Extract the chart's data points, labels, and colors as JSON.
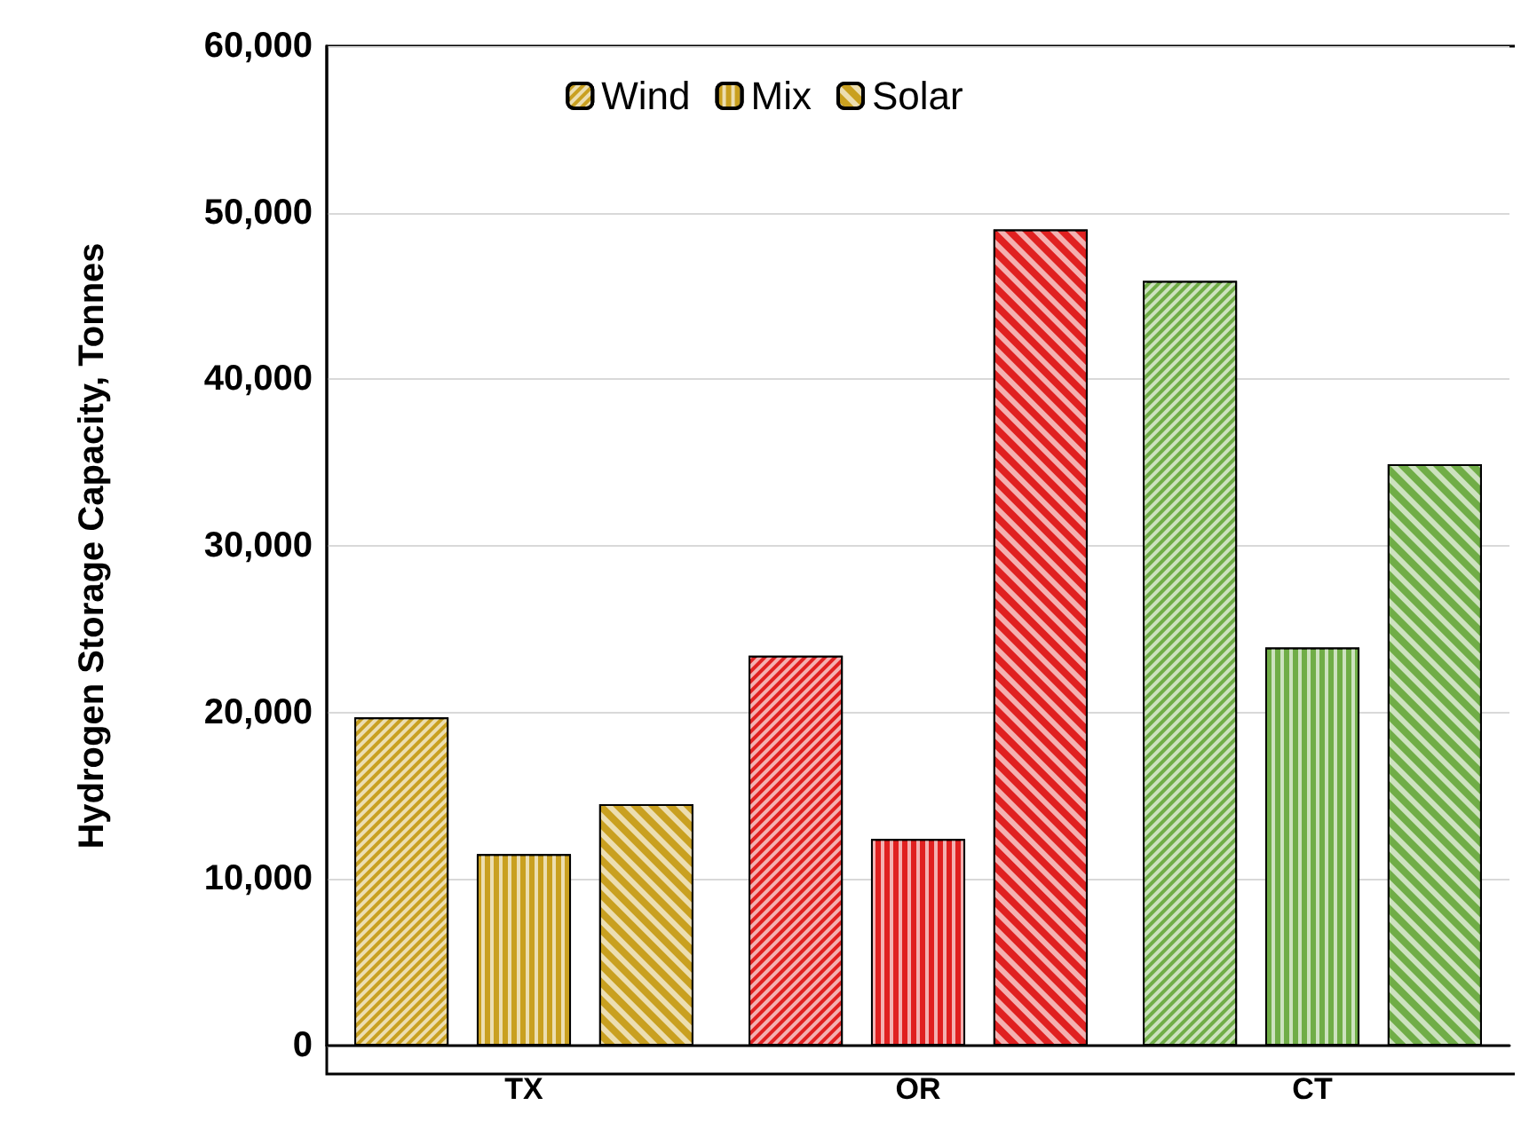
{
  "chart_data": {
    "type": "bar",
    "ylabel": "Hydrogen Storage Capacity, Tonnes",
    "categories": [
      "TX",
      "OR",
      "CT"
    ],
    "series": [
      {
        "name": "Wind",
        "color": "#c9a020",
        "colors": [
          "#c9a020",
          "#e02020",
          "#70ad47"
        ],
        "values": [
          19700,
          23400,
          45900
        ]
      },
      {
        "name": "Mix",
        "color": "#c9a020",
        "colors": [
          "#c9a020",
          "#e02020",
          "#70ad47"
        ],
        "values": [
          11500,
          12400,
          23900
        ]
      },
      {
        "name": "Solar",
        "color": "#c9a020",
        "colors": [
          "#c9a020",
          "#e02020",
          "#70ad47"
        ],
        "values": [
          14500,
          49000,
          34900
        ]
      }
    ],
    "ylim": [
      0,
      60000
    ],
    "yticks": [
      {
        "value": 0,
        "label": "0"
      },
      {
        "value": 10000,
        "label": "10,000"
      },
      {
        "value": 20000,
        "label": "20,000"
      },
      {
        "value": 30000,
        "label": "30,000"
      },
      {
        "value": 40000,
        "label": "40,000"
      },
      {
        "value": 50000,
        "label": "50,000"
      },
      {
        "value": 60000,
        "label": "60,000"
      }
    ],
    "grid": "y",
    "legend": "top"
  }
}
